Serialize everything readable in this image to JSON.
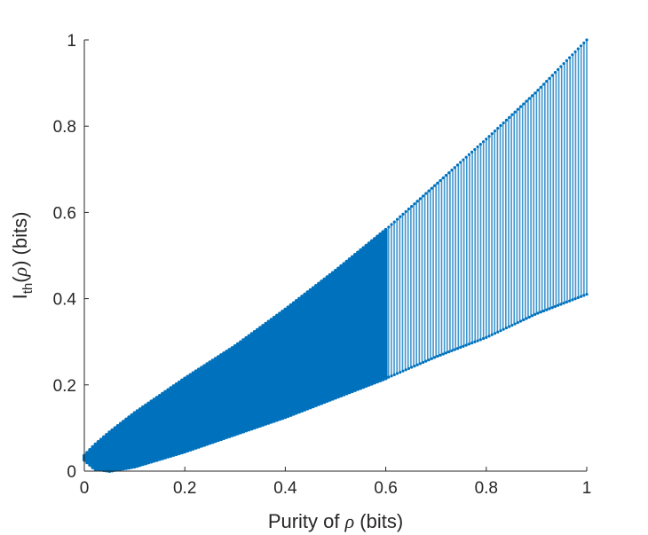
{
  "chart_data": {
    "type": "scatter",
    "title": "",
    "xlabel": {
      "prefix": "Purity of ",
      "symbol": "ρ",
      "suffix": " (bits)"
    },
    "ylabel": {
      "main": "I",
      "subscript": "th",
      "open_paren": "(",
      "symbol": "ρ",
      "close_paren": ")",
      "suffix": " (bits)"
    },
    "xlim": [
      0,
      1
    ],
    "ylim": [
      0,
      1
    ],
    "xticks": [
      0,
      0.2,
      0.4,
      0.6,
      0.8,
      1
    ],
    "xtick_labels": [
      "0",
      "0.2",
      "0.4",
      "0.6",
      "0.8",
      "1"
    ],
    "yticks": [
      0,
      0.2,
      0.4,
      0.6,
      0.8,
      1
    ],
    "ytick_labels": [
      "0",
      "0.2",
      "0.4",
      "0.6",
      "0.8",
      "1"
    ],
    "grid": false,
    "legend": "none",
    "color": "#0072BD",
    "series": [
      {
        "values": [
          {
            "x": 0.0,
            "ylow": 0.026,
            "yhigh": 0.036
          },
          {
            "x": 0.02,
            "ylow": 0.005,
            "yhigh": 0.06
          },
          {
            "x": 0.05,
            "ylow": 0.0,
            "yhigh": 0.09
          },
          {
            "x": 0.1,
            "ylow": 0.01,
            "yhigh": 0.135
          },
          {
            "x": 0.2,
            "ylow": 0.045,
            "yhigh": 0.215
          },
          {
            "x": 0.3,
            "ylow": 0.085,
            "yhigh": 0.29
          },
          {
            "x": 0.4,
            "ylow": 0.125,
            "yhigh": 0.375
          },
          {
            "x": 0.5,
            "ylow": 0.17,
            "yhigh": 0.465
          },
          {
            "x": 0.6,
            "ylow": 0.215,
            "yhigh": 0.56
          },
          {
            "x": 0.7,
            "ylow": 0.265,
            "yhigh": 0.665
          },
          {
            "x": 0.8,
            "ylow": 0.31,
            "yhigh": 0.77
          },
          {
            "x": 0.9,
            "ylow": 0.365,
            "yhigh": 0.88
          },
          {
            "x": 1.0,
            "ylow": 0.41,
            "yhigh": 1.0
          }
        ]
      }
    ]
  }
}
